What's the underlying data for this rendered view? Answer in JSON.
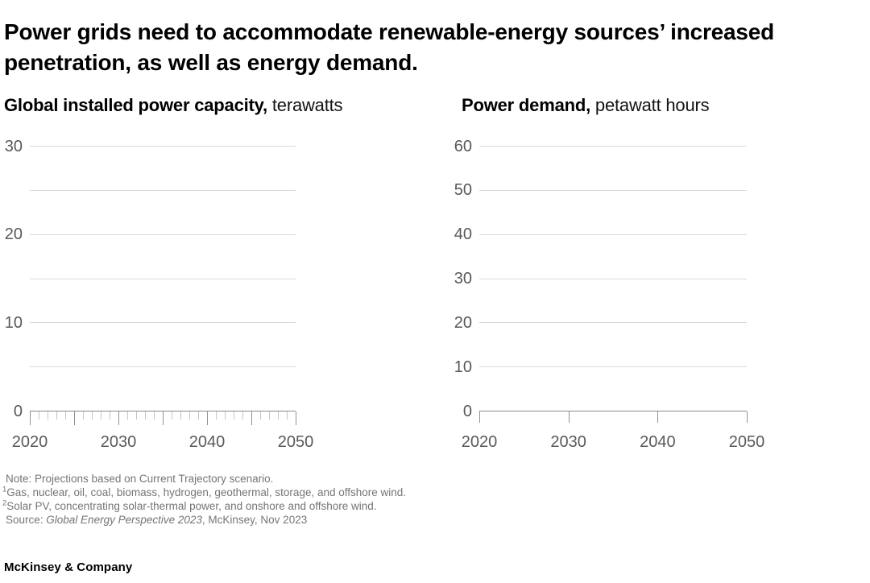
{
  "title": "Power grids need to accommodate renewable-energy sources’ increased penetration, as well as energy demand.",
  "chart_data": [
    {
      "type": "line",
      "title": "Global installed power capacity,",
      "unit": "terawatts",
      "ylabel": "terawatts",
      "ylim": [
        0,
        30
      ],
      "y_gridlines": [
        0,
        5,
        10,
        15,
        20,
        25,
        30
      ],
      "y_labeled_ticks": [
        0,
        10,
        20,
        30
      ],
      "x_range": [
        2020,
        2050
      ],
      "x_minor_tick_step": 1,
      "x_major_tick_step": 5,
      "x_tick_labels": [
        2020,
        2030,
        2040,
        2050
      ],
      "grid": true,
      "series": [],
      "note": "Axes and gridlines only; no data series are drawn in the screenshot."
    },
    {
      "type": "line",
      "title": "Power demand,",
      "unit": "petawatt hours",
      "ylabel": "petawatt hours",
      "ylim": [
        0,
        60
      ],
      "y_gridlines": [
        0,
        10,
        20,
        30,
        40,
        50,
        60
      ],
      "y_labeled_ticks": [
        0,
        10,
        20,
        30,
        40,
        50,
        60
      ],
      "x_range": [
        2020,
        2050
      ],
      "x_minor_tick_step": 10,
      "x_major_tick_step": 10,
      "x_tick_labels": [
        2020,
        2030,
        2040,
        2050
      ],
      "grid": true,
      "series": [],
      "note": "Axes and gridlines only; no data series are drawn in the screenshot."
    }
  ],
  "footnotes": {
    "note": "Note: Projections based on Current Trajectory scenario.",
    "fn1_sup": "1",
    "fn1_text": "Gas, nuclear, oil, coal, biomass, hydrogen, geothermal, storage, and offshore wind.",
    "fn2_sup": "2",
    "fn2_text": "Solar PV, concentrating solar-thermal power, and onshore and offshore wind.",
    "source_prefix": "Source: ",
    "source_italic": "Global Energy Perspective 2023",
    "source_suffix": ", McKinsey, Nov 2023"
  },
  "brand": "McKinsey & Company",
  "colors": {
    "background": "#ffffff",
    "title_text": "#000000",
    "axis_label": "#595959",
    "gridline": "#d9d9d9",
    "axis_line": "#8a8a8a",
    "minor_tick": "#c6c6c6",
    "footnote_text": "#757575"
  }
}
